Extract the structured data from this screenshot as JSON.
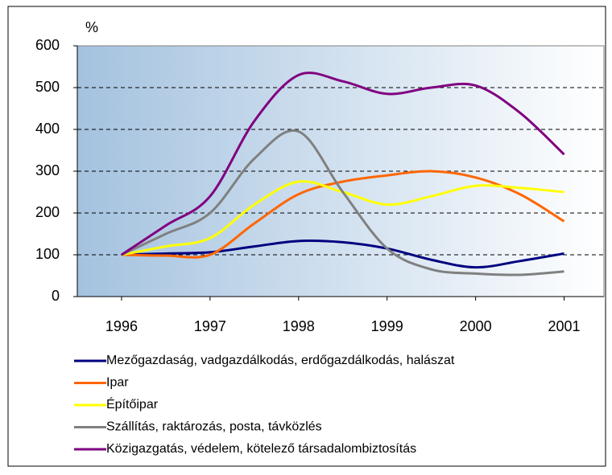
{
  "chart_data": {
    "type": "line",
    "y_label": "%",
    "x": [
      1996,
      1996.5,
      1997,
      1997.5,
      1998,
      1998.5,
      1999,
      1999.5,
      2000,
      2000.5,
      2001
    ],
    "xlim": [
      1995.5,
      2001.45
    ],
    "xticks": [
      1996,
      1997,
      1998,
      1999,
      2000,
      2001
    ],
    "ylim": [
      0,
      600
    ],
    "yticks": [
      0,
      100,
      200,
      300,
      400,
      500,
      600
    ],
    "grid": true,
    "smooth": true,
    "series": [
      {
        "name": "Mezőgazdaság, vadgazdálkodás, erdőgazdálkodás, halászat",
        "color": "#000080",
        "values": [
          100,
          103,
          106,
          120,
          133,
          130,
          115,
          88,
          70,
          85,
          103
        ]
      },
      {
        "name": "Ipar",
        "color": "#ff6600",
        "values": [
          100,
          98,
          100,
          175,
          245,
          275,
          290,
          300,
          285,
          245,
          180
        ]
      },
      {
        "name": "Építőipar",
        "color": "#ffff00",
        "values": [
          100,
          120,
          140,
          220,
          275,
          250,
          220,
          240,
          265,
          260,
          250
        ]
      },
      {
        "name": "Szállítás, raktározás, posta, távközlés",
        "color": "#808080",
        "values": [
          100,
          150,
          200,
          330,
          395,
          250,
          115,
          65,
          55,
          52,
          60
        ]
      },
      {
        "name": "Közigazgatás, védelem, kötelező társadalombiztosítás",
        "color": "#800080",
        "values": [
          100,
          170,
          240,
          420,
          530,
          515,
          485,
          500,
          505,
          440,
          340
        ]
      }
    ]
  }
}
